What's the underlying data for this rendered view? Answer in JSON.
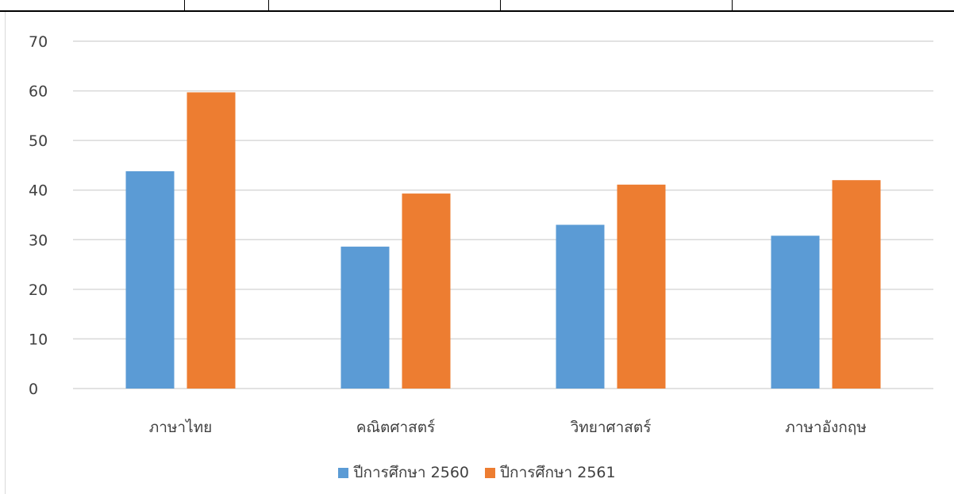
{
  "colors": {
    "series_2560": "#5b9bd5",
    "series_2561": "#ed7d31",
    "grid": "#d9d9d9",
    "text": "#404040"
  },
  "chart_data": {
    "type": "bar",
    "title": "",
    "xlabel": "",
    "ylabel": "",
    "ylim": [
      0,
      70
    ],
    "yticks": [
      "0",
      "10",
      "20",
      "30",
      "40",
      "50",
      "60",
      "70"
    ],
    "grid": true,
    "legend_position": "bottom",
    "categories": [
      "ภาษาไทย",
      "คณิตศาสตร์",
      "วิทยาศาสตร์",
      "ภาษาอังกฤษ"
    ],
    "series": [
      {
        "name": "ปีการศึกษา 2560",
        "values": [
          43.8,
          28.6,
          33.0,
          30.8
        ]
      },
      {
        "name": "ปีการศึกษา 2561",
        "values": [
          59.7,
          39.3,
          41.1,
          42.0
        ]
      }
    ]
  }
}
